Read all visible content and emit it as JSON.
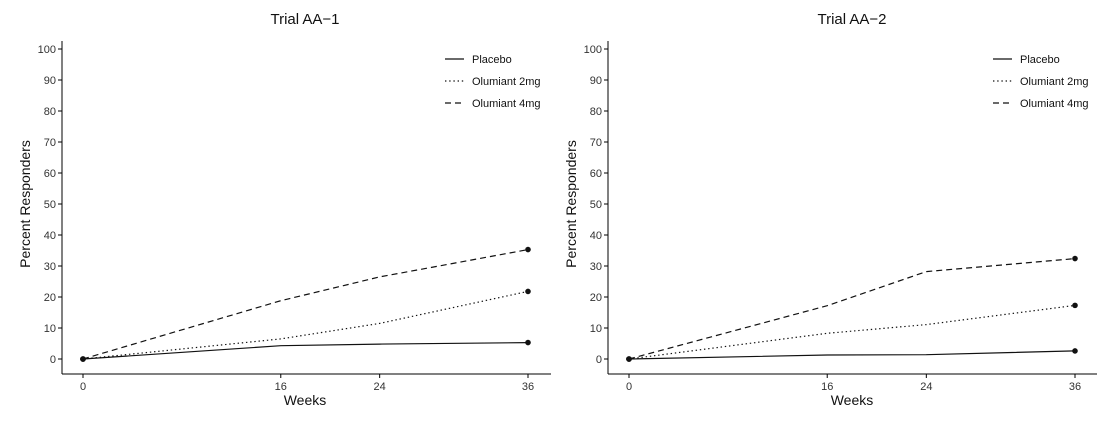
{
  "chart_data": [
    {
      "type": "line",
      "title": "Trial AA−1",
      "xlabel": "Weeks",
      "ylabel": "Percent Responders",
      "x_ticks": [
        0,
        16,
        24,
        36
      ],
      "x_tick_labels": [
        "0",
        "16",
        "24",
        "36"
      ],
      "xlim": [
        0,
        36
      ],
      "y_ticks": [
        0,
        10,
        20,
        30,
        40,
        50,
        60,
        70,
        80,
        90,
        100
      ],
      "y_tick_labels": [
        "0",
        "10",
        "20",
        "30",
        "40",
        "50",
        "60",
        "70",
        "80",
        "90",
        "100"
      ],
      "ylim": [
        0,
        100
      ],
      "grid": false,
      "legend_position": "top-right",
      "series": [
        {
          "name": "Placebo",
          "style": "solid",
          "x": [
            0,
            16,
            24,
            36
          ],
          "values": [
            0,
            4.3,
            4.8,
            5.3
          ],
          "markers": [
            0,
            36
          ]
        },
        {
          "name": "Olumiant 2mg",
          "style": "dotted",
          "x": [
            0,
            16,
            24,
            36
          ],
          "values": [
            0,
            6.5,
            11.5,
            21.8
          ],
          "markers": [
            0,
            36
          ]
        },
        {
          "name": "Olumiant 4mg",
          "style": "dashed",
          "x": [
            0,
            16,
            24,
            36
          ],
          "values": [
            0,
            18.8,
            26.5,
            35.3
          ],
          "markers": [
            0,
            36
          ]
        }
      ]
    },
    {
      "type": "line",
      "title": "Trial AA−2",
      "xlabel": "Weeks",
      "ylabel": "Percent Responders",
      "x_ticks": [
        0,
        16,
        24,
        36
      ],
      "x_tick_labels": [
        "0",
        "16",
        "24",
        "36"
      ],
      "xlim": [
        0,
        36
      ],
      "y_ticks": [
        0,
        10,
        20,
        30,
        40,
        50,
        60,
        70,
        80,
        90,
        100
      ],
      "y_tick_labels": [
        "0",
        "10",
        "20",
        "30",
        "40",
        "50",
        "60",
        "70",
        "80",
        "90",
        "100"
      ],
      "ylim": [
        0,
        100
      ],
      "grid": false,
      "legend_position": "top-right",
      "series": [
        {
          "name": "Placebo",
          "style": "solid",
          "x": [
            0,
            16,
            24,
            36
          ],
          "values": [
            0,
            1.3,
            1.4,
            2.6
          ],
          "markers": [
            0,
            36
          ]
        },
        {
          "name": "Olumiant 2mg",
          "style": "dotted",
          "x": [
            0,
            16,
            24,
            36
          ],
          "values": [
            0,
            8.3,
            11.1,
            17.3
          ],
          "markers": [
            0,
            36
          ]
        },
        {
          "name": "Olumiant 4mg",
          "style": "dashed",
          "x": [
            0,
            16,
            24,
            36
          ],
          "values": [
            0,
            17.2,
            28.2,
            32.4
          ],
          "markers": [
            0,
            36
          ]
        }
      ]
    }
  ],
  "colors": {
    "line": "#111111",
    "axis": "#000000",
    "text": "#111111",
    "background": "#ffffff"
  }
}
